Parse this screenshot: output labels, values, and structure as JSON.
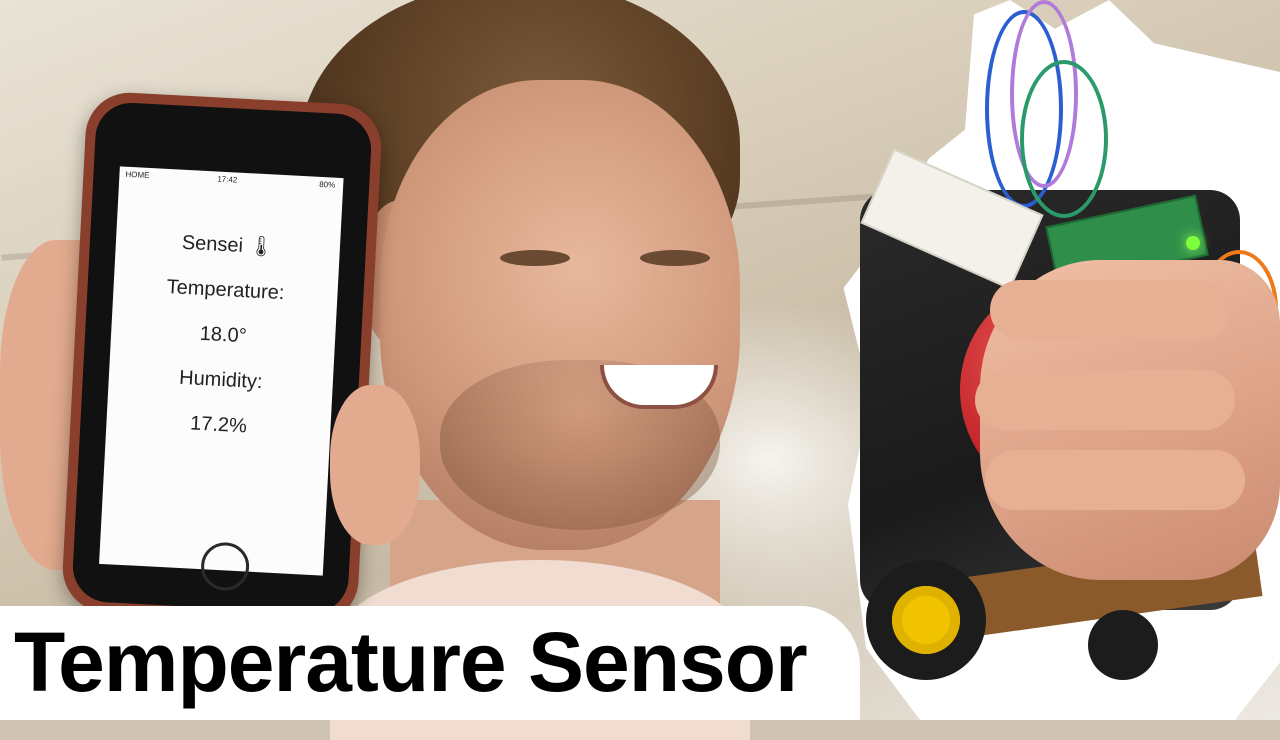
{
  "caption": {
    "title": "Temperature Sensor"
  },
  "phone": {
    "status_bar": {
      "carrier": "HOME",
      "time": "17:42",
      "battery": "80%"
    },
    "app": {
      "name": "Sensei",
      "emoji": "🌡",
      "temperature_label": "Temperature:",
      "temperature_value": "18.0°",
      "humidity_label": "Humidity:",
      "humidity_value": "17.2%"
    }
  },
  "colors": {
    "caption_text": "#000000",
    "caption_background": "#ffffff",
    "phone_case": "#8a3f2c",
    "wheel_hub": "#f2c400",
    "led": "#7dff3b"
  }
}
